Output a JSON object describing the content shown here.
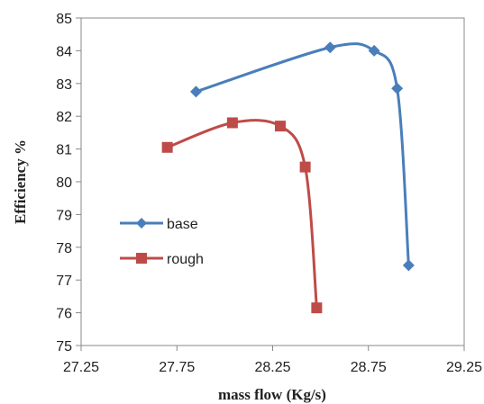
{
  "chart_data": {
    "type": "scatter",
    "xlabel": "mass flow (Kg/s)",
    "ylabel": "Efficiency %",
    "xlim": [
      27.25,
      29.25
    ],
    "ylim": [
      75,
      85
    ],
    "x_ticks": [
      27.25,
      27.75,
      28.25,
      28.75,
      29.25
    ],
    "y_ticks": [
      75,
      76,
      77,
      78,
      79,
      80,
      81,
      82,
      83,
      84,
      85
    ],
    "x_tick_labels": [
      "27.25",
      "27.75",
      "28.25",
      "28.75",
      "29.25"
    ],
    "y_tick_labels": [
      "75",
      "76",
      "77",
      "78",
      "79",
      "80",
      "81",
      "82",
      "83",
      "84",
      "85"
    ],
    "grid": false,
    "legend_position": "left-center",
    "series": [
      {
        "name": "base",
        "color": "#4A7EBB",
        "marker": "diamond",
        "points": [
          {
            "x": 27.85,
            "y": 82.75
          },
          {
            "x": 28.55,
            "y": 84.1
          },
          {
            "x": 28.78,
            "y": 84.0
          },
          {
            "x": 28.9,
            "y": 82.85
          },
          {
            "x": 28.96,
            "y": 77.45
          }
        ]
      },
      {
        "name": "rough",
        "color": "#BE4B48",
        "marker": "square",
        "points": [
          {
            "x": 27.7,
            "y": 81.05
          },
          {
            "x": 28.04,
            "y": 81.8
          },
          {
            "x": 28.29,
            "y": 81.7
          },
          {
            "x": 28.42,
            "y": 80.45
          },
          {
            "x": 28.48,
            "y": 76.15
          }
        ]
      }
    ]
  }
}
